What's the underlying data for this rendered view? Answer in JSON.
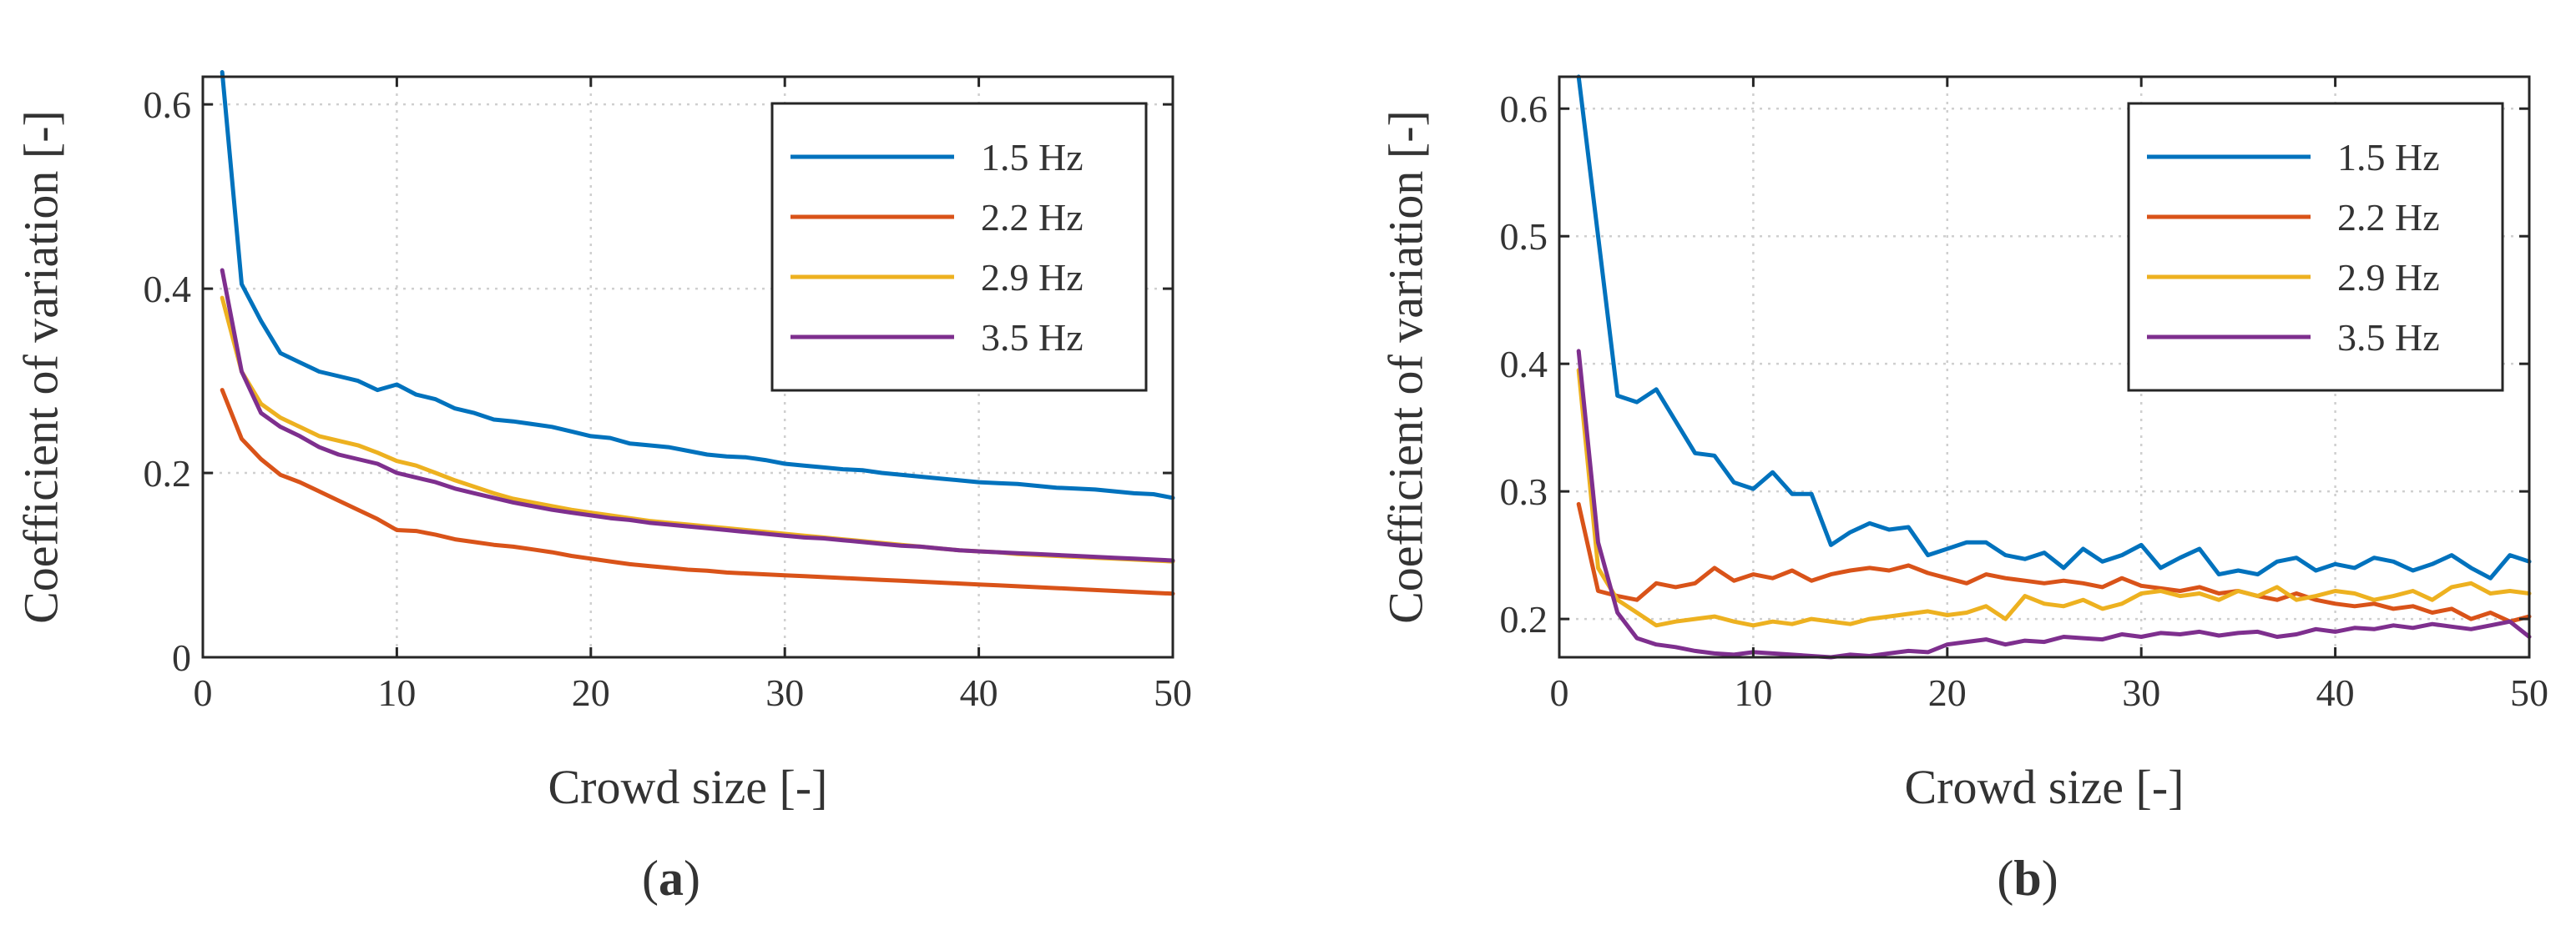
{
  "chart_data": [
    {
      "type": "line",
      "panel_label": "(a)",
      "panel_letter": "a",
      "xlabel": "Crowd size [-]",
      "ylabel": "Coefficient of variation [-]",
      "xlim": [
        0,
        50
      ],
      "ylim": [
        0,
        0.63
      ],
      "xticks": [
        0,
        10,
        20,
        30,
        40,
        50
      ],
      "yticks": [
        0,
        0.2,
        0.4,
        0.6
      ],
      "grid": true,
      "legend_position": "top-right",
      "series": [
        {
          "name": "1.5 Hz",
          "color": "#0072BD",
          "values": [
            0.635,
            0.405,
            0.365,
            0.33,
            0.32,
            0.31,
            0.305,
            0.3,
            0.29,
            0.296,
            0.285,
            0.28,
            0.27,
            0.265,
            0.258,
            0.256,
            0.253,
            0.25,
            0.245,
            0.24,
            0.238,
            0.232,
            0.23,
            0.228,
            0.224,
            0.22,
            0.218,
            0.217,
            0.214,
            0.21,
            0.208,
            0.206,
            0.204,
            0.203,
            0.2,
            0.198,
            0.196,
            0.194,
            0.192,
            0.19,
            0.189,
            0.188,
            0.186,
            0.184,
            0.183,
            0.182,
            0.18,
            0.178,
            0.177,
            0.173
          ]
        },
        {
          "name": "2.2 Hz",
          "color": "#D95319",
          "values": [
            0.29,
            0.237,
            0.215,
            0.198,
            0.19,
            0.18,
            0.17,
            0.16,
            0.15,
            0.138,
            0.137,
            0.133,
            0.128,
            0.125,
            0.122,
            0.12,
            0.117,
            0.114,
            0.11,
            0.107,
            0.104,
            0.101,
            0.099,
            0.097,
            0.095,
            0.094,
            0.092,
            0.091,
            0.09,
            0.089,
            0.088,
            0.087,
            0.086,
            0.085,
            0.084,
            0.083,
            0.082,
            0.081,
            0.08,
            0.079,
            0.078,
            0.077,
            0.076,
            0.075,
            0.074,
            0.073,
            0.072,
            0.071,
            0.07,
            0.069
          ]
        },
        {
          "name": "2.9 Hz",
          "color": "#EDB120",
          "values": [
            0.39,
            0.31,
            0.275,
            0.26,
            0.25,
            0.24,
            0.235,
            0.23,
            0.222,
            0.213,
            0.208,
            0.2,
            0.192,
            0.185,
            0.178,
            0.172,
            0.168,
            0.164,
            0.16,
            0.157,
            0.154,
            0.151,
            0.148,
            0.146,
            0.144,
            0.142,
            0.14,
            0.138,
            0.136,
            0.134,
            0.132,
            0.13,
            0.128,
            0.126,
            0.124,
            0.122,
            0.12,
            0.118,
            0.116,
            0.115,
            0.114,
            0.112,
            0.111,
            0.11,
            0.109,
            0.108,
            0.107,
            0.106,
            0.105,
            0.104
          ]
        },
        {
          "name": "3.5 Hz",
          "color": "#7E2F8E",
          "values": [
            0.42,
            0.31,
            0.265,
            0.25,
            0.24,
            0.228,
            0.22,
            0.215,
            0.21,
            0.2,
            0.195,
            0.19,
            0.183,
            0.178,
            0.173,
            0.168,
            0.164,
            0.16,
            0.157,
            0.154,
            0.151,
            0.149,
            0.146,
            0.144,
            0.142,
            0.14,
            0.138,
            0.136,
            0.134,
            0.132,
            0.13,
            0.129,
            0.127,
            0.125,
            0.123,
            0.121,
            0.12,
            0.118,
            0.116,
            0.115,
            0.114,
            0.113,
            0.112,
            0.111,
            0.11,
            0.109,
            0.108,
            0.107,
            0.106,
            0.105
          ]
        }
      ]
    },
    {
      "type": "line",
      "panel_label": "(b)",
      "panel_letter": "b",
      "xlabel": "Crowd size [-]",
      "ylabel": "Coefficient of variation [-]",
      "xlim": [
        0,
        50
      ],
      "ylim": [
        0.17,
        0.625
      ],
      "xticks": [
        0,
        10,
        20,
        30,
        40,
        50
      ],
      "yticks": [
        0.2,
        0.3,
        0.4,
        0.5,
        0.6
      ],
      "grid": true,
      "legend_position": "top-right",
      "series": [
        {
          "name": "1.5 Hz",
          "color": "#0072BD",
          "values": [
            0.625,
            0.5,
            0.375,
            0.37,
            0.38,
            0.355,
            0.33,
            0.328,
            0.307,
            0.302,
            0.315,
            0.298,
            0.298,
            0.258,
            0.268,
            0.275,
            0.27,
            0.272,
            0.25,
            0.255,
            0.26,
            0.26,
            0.25,
            0.247,
            0.252,
            0.24,
            0.255,
            0.245,
            0.25,
            0.258,
            0.24,
            0.248,
            0.255,
            0.235,
            0.238,
            0.235,
            0.245,
            0.248,
            0.238,
            0.243,
            0.24,
            0.248,
            0.245,
            0.238,
            0.243,
            0.25,
            0.24,
            0.232,
            0.25,
            0.245
          ]
        },
        {
          "name": "2.2 Hz",
          "color": "#D95319",
          "values": [
            0.29,
            0.222,
            0.218,
            0.215,
            0.228,
            0.225,
            0.228,
            0.24,
            0.23,
            0.235,
            0.232,
            0.238,
            0.23,
            0.235,
            0.238,
            0.24,
            0.238,
            0.242,
            0.236,
            0.232,
            0.228,
            0.235,
            0.232,
            0.23,
            0.228,
            0.23,
            0.228,
            0.225,
            0.232,
            0.226,
            0.224,
            0.222,
            0.225,
            0.22,
            0.222,
            0.218,
            0.215,
            0.22,
            0.215,
            0.212,
            0.21,
            0.212,
            0.208,
            0.21,
            0.205,
            0.208,
            0.2,
            0.205,
            0.198,
            0.202
          ]
        },
        {
          "name": "2.9 Hz",
          "color": "#EDB120",
          "values": [
            0.395,
            0.24,
            0.215,
            0.205,
            0.195,
            0.198,
            0.2,
            0.202,
            0.198,
            0.195,
            0.198,
            0.196,
            0.2,
            0.198,
            0.196,
            0.2,
            0.202,
            0.204,
            0.206,
            0.203,
            0.205,
            0.21,
            0.2,
            0.218,
            0.212,
            0.21,
            0.215,
            0.208,
            0.212,
            0.22,
            0.222,
            0.218,
            0.22,
            0.215,
            0.222,
            0.218,
            0.225,
            0.215,
            0.218,
            0.222,
            0.22,
            0.215,
            0.218,
            0.222,
            0.215,
            0.225,
            0.228,
            0.22,
            0.222,
            0.22
          ]
        },
        {
          "name": "3.5 Hz",
          "color": "#7E2F8E",
          "values": [
            0.41,
            0.26,
            0.205,
            0.185,
            0.18,
            0.178,
            0.175,
            0.173,
            0.172,
            0.174,
            0.173,
            0.172,
            0.171,
            0.17,
            0.172,
            0.171,
            0.173,
            0.175,
            0.174,
            0.18,
            0.182,
            0.184,
            0.18,
            0.183,
            0.182,
            0.186,
            0.185,
            0.184,
            0.188,
            0.186,
            0.189,
            0.188,
            0.19,
            0.187,
            0.189,
            0.19,
            0.186,
            0.188,
            0.192,
            0.19,
            0.193,
            0.192,
            0.195,
            0.193,
            0.196,
            0.194,
            0.192,
            0.195,
            0.198,
            0.186
          ]
        }
      ]
    }
  ]
}
